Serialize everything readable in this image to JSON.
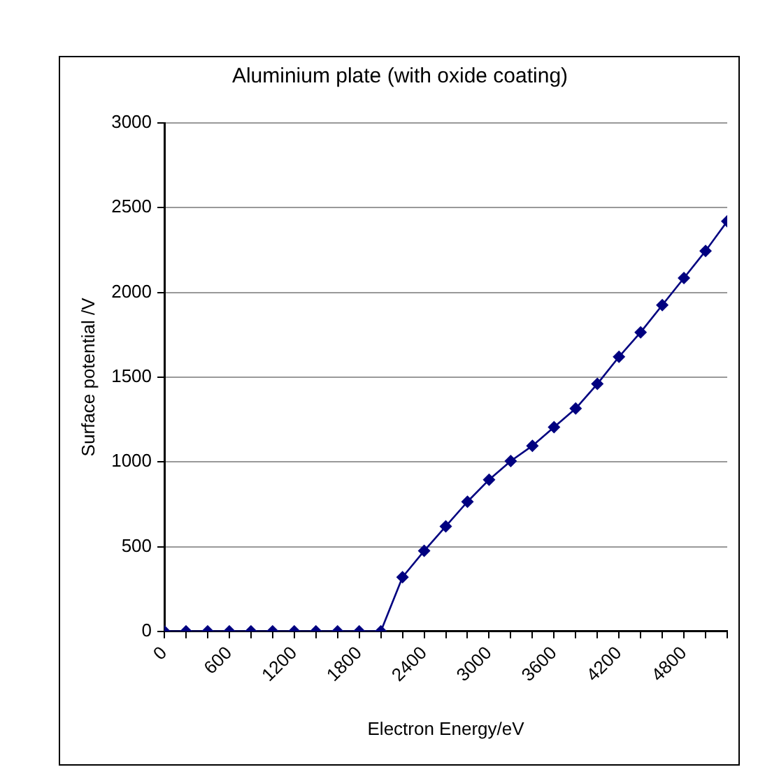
{
  "chart_data": {
    "type": "line",
    "title": "Aluminium plate (with oxide coating)",
    "xlabel": "Electron Energy/eV",
    "ylabel": "Surface potential /V",
    "x": [
      0,
      200,
      400,
      600,
      800,
      1000,
      1200,
      1400,
      1600,
      1800,
      2000,
      2200,
      2400,
      2600,
      2800,
      3000,
      3200,
      3400,
      3600,
      3800,
      4000,
      4200,
      4400,
      4600,
      4800,
      5000,
      5200
    ],
    "series": [
      {
        "color": "#000080",
        "values": [
          0,
          0,
          0,
          0,
          0,
          0,
          0,
          0,
          0,
          0,
          0,
          320,
          475,
          620,
          765,
          895,
          1005,
          1095,
          1205,
          1315,
          1460,
          1620,
          1765,
          1925,
          2085,
          2245,
          2420
        ]
      }
    ],
    "xlim": [
      0,
      5200
    ],
    "xticks": [
      0,
      {
        "value": 200,
        "label": null
      },
      {
        "value": 400,
        "label": null
      },
      600,
      {
        "value": 800,
        "label": null
      },
      {
        "value": 1000,
        "label": null
      },
      1200,
      {
        "value": 1400,
        "label": null
      },
      {
        "value": 1600,
        "label": null
      },
      1800,
      {
        "value": 2000,
        "label": null
      },
      {
        "value": 2200,
        "label": null
      },
      2400,
      {
        "value": 2600,
        "label": null
      },
      {
        "value": 2800,
        "label": null
      },
      3000,
      {
        "value": 3200,
        "label": null
      },
      {
        "value": 3400,
        "label": null
      },
      3600,
      {
        "value": 3800,
        "label": null
      },
      {
        "value": 4000,
        "label": null
      },
      4200,
      {
        "value": 4400,
        "label": null
      },
      {
        "value": 4600,
        "label": null
      },
      4800,
      {
        "value": 5000,
        "label": null
      },
      {
        "value": 5200,
        "label": null
      }
    ],
    "ylim": [
      0,
      3000
    ],
    "yticks": [
      0,
      500,
      1000,
      1500,
      2000,
      2500,
      3000
    ],
    "grid": "y",
    "legend": false,
    "marker": "diamond",
    "line_style": "solid"
  }
}
